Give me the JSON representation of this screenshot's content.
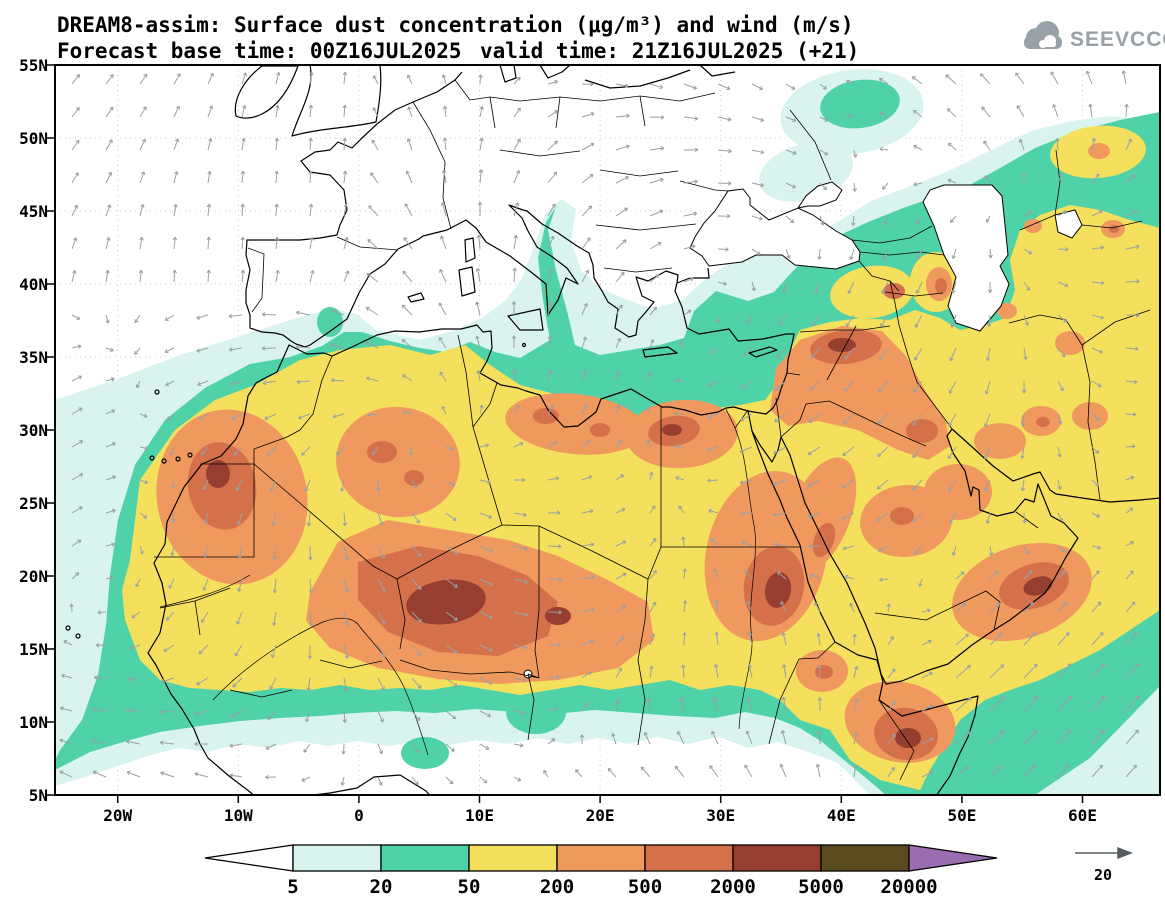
{
  "header": {
    "title": "DREAM8-assim: Surface dust concentration (μg/m³) and wind (m/s)",
    "base_time": "Forecast base time: 00Z16JUL2025",
    "valid_time": "valid time: 21Z16JUL2025 (+21)",
    "logo": "SEEVCCC"
  },
  "axes": {
    "lat": [
      "55N",
      "50N",
      "45N",
      "40N",
      "35N",
      "30N",
      "25N",
      "20N",
      "15N",
      "10N",
      "5N"
    ],
    "lon": [
      "20W",
      "10W",
      "0",
      "10E",
      "20E",
      "30E",
      "40E",
      "50E",
      "60E"
    ]
  },
  "legend": {
    "labels": [
      "5",
      "20",
      "50",
      "200",
      "500",
      "2000",
      "5000",
      "20000"
    ]
  },
  "wind_reference": {
    "value": "20"
  },
  "palette": {
    "levels": [
      "#ffffff",
      "#d9f4ee",
      "#50d2a8",
      "#f4e05c",
      "#f0995f",
      "#d4714a",
      "#963f30",
      "#5a4a20",
      "#9a6cb0"
    ],
    "wind_arrow": "#9aa0a4",
    "grid": "#c6cdd1",
    "frame": "#000000",
    "logo_gray": "#98a1a5"
  },
  "chart_data": {
    "type": "heatmap",
    "title": "DREAM8-assim: Surface dust concentration (μg/m³) and wind (m/s)",
    "variable": "surface dust concentration",
    "units": "μg/m³",
    "wind_units": "m/s",
    "contour_levels": [
      5,
      20,
      50,
      200,
      500,
      2000,
      5000,
      20000
    ],
    "x_tick_labels": [
      "20W",
      "10W",
      "0",
      "10E",
      "20E",
      "30E",
      "40E",
      "50E",
      "60E"
    ],
    "y_tick_labels": [
      "55N",
      "50N",
      "45N",
      "40N",
      "35N",
      "30N",
      "25N",
      "20N",
      "15N",
      "10N",
      "5N"
    ],
    "forecast_base_time": "00Z16JUL2025",
    "valid_time": "21Z16JUL2025 (+21)",
    "wind_reference_m_s": 20,
    "legend_position": "bottom"
  }
}
